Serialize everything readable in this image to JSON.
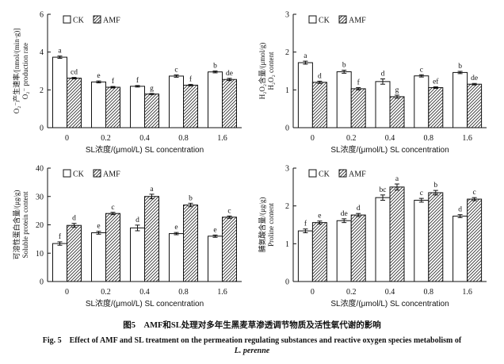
{
  "chart_data": [
    {
      "type": "bar",
      "ylabel_cn": "O₂⁻产生速率/[nmol/(min·g)]",
      "ylabel_en": "O₂⁻ production rate",
      "xlabel": "SL浓度/(μmol/L) SL concentration",
      "ylim": [
        0,
        6
      ],
      "yticks": [
        0,
        2,
        4,
        6
      ],
      "categories": [
        "0",
        "0.2",
        "0.4",
        "0.8",
        "1.6"
      ],
      "series": [
        {
          "name": "CK",
          "values": [
            3.73,
            2.42,
            2.19,
            2.73,
            2.95
          ],
          "errors": [
            0.06,
            0.05,
            0.04,
            0.06,
            0.05
          ],
          "letters": [
            "a",
            "e",
            "f",
            "c",
            "b"
          ]
        },
        {
          "name": "AMF",
          "values": [
            2.62,
            2.14,
            1.78,
            2.25,
            2.55
          ],
          "errors": [
            0.04,
            0.04,
            0.03,
            0.04,
            0.06
          ],
          "letters": [
            "cd",
            "f",
            "g",
            "f",
            "de"
          ]
        }
      ]
    },
    {
      "type": "bar",
      "ylabel_cn": "H₂O₂含量/(μmol/g)",
      "ylabel_en": "H₂O₂ content",
      "xlabel": "SL浓度/(μmol/L) SL concentration",
      "ylim": [
        0,
        3
      ],
      "yticks": [
        0,
        1,
        2,
        3
      ],
      "categories": [
        "0",
        "0.2",
        "0.4",
        "0.8",
        "1.6"
      ],
      "series": [
        {
          "name": "CK",
          "values": [
            1.72,
            1.48,
            1.22,
            1.37,
            1.46
          ],
          "errors": [
            0.04,
            0.04,
            0.07,
            0.03,
            0.03
          ],
          "letters": [
            "a",
            "b",
            "d",
            "c",
            "b"
          ]
        },
        {
          "name": "AMF",
          "values": [
            1.2,
            1.03,
            0.82,
            1.06,
            1.15
          ],
          "errors": [
            0.03,
            0.03,
            0.04,
            0.02,
            0.02
          ],
          "letters": [
            "d",
            "f",
            "g",
            "ef",
            "de"
          ]
        }
      ]
    },
    {
      "type": "bar",
      "ylabel_cn": "可溶性蛋白含量/(μg/g)",
      "ylabel_en": "Soluble protein content",
      "xlabel": "SL浓度/(μmol/L) SL concentration",
      "ylim": [
        0,
        40
      ],
      "yticks": [
        0,
        10,
        20,
        30,
        40
      ],
      "categories": [
        "0",
        "0.2",
        "0.4",
        "0.8",
        "1.6"
      ],
      "series": [
        {
          "name": "CK",
          "values": [
            13.4,
            17.2,
            18.9,
            16.9,
            16.0
          ],
          "errors": [
            0.6,
            0.5,
            1.0,
            0.4,
            0.4
          ],
          "letters": [
            "f",
            "e",
            "d",
            "e",
            "e"
          ]
        },
        {
          "name": "AMF",
          "values": [
            19.8,
            24.0,
            30.0,
            27.0,
            22.7
          ],
          "errors": [
            0.7,
            0.4,
            0.8,
            0.6,
            0.4
          ],
          "letters": [
            "d",
            "c",
            "a",
            "b",
            "c"
          ]
        }
      ]
    },
    {
      "type": "bar",
      "ylabel_cn": "脯氨酸含量/(μg/g)",
      "ylabel_en": "Proline content",
      "xlabel": "SL浓度/(μmol/L) SL concentration",
      "ylim": [
        0,
        3
      ],
      "yticks": [
        0,
        1,
        2,
        3
      ],
      "categories": [
        "0",
        "0.2",
        "0.4",
        "0.8",
        "1.6"
      ],
      "series": [
        {
          "name": "CK",
          "values": [
            1.34,
            1.61,
            2.22,
            2.15,
            1.73
          ],
          "errors": [
            0.05,
            0.05,
            0.07,
            0.05,
            0.04
          ],
          "letters": [
            "f",
            "de",
            "bc",
            "c",
            "d"
          ]
        },
        {
          "name": "AMF",
          "values": [
            1.56,
            1.76,
            2.5,
            2.35,
            2.18
          ],
          "errors": [
            0.04,
            0.04,
            0.08,
            0.06,
            0.04
          ],
          "letters": [
            "e",
            "d",
            "a",
            "b",
            "c"
          ]
        }
      ]
    }
  ],
  "caption": {
    "cn": "图5　AMF和SL处理对多年生黑麦草渗透调节物质及活性氧代谢的影响",
    "en": "Fig. 5　Effect of AMF and SL treatment on the permeation regulating substances and reactive oxygen species metabolism of",
    "en_species": "L. perenne"
  },
  "colors": {
    "ck_fill": "#ffffff",
    "amf_hatch": "#333333",
    "axis": "#111111"
  }
}
